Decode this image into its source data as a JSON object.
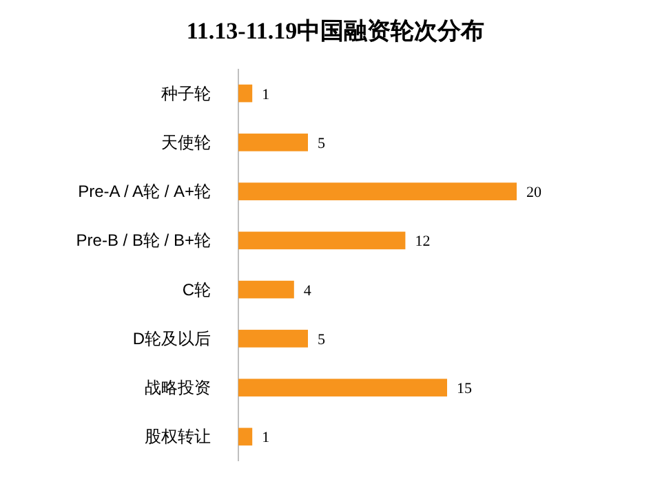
{
  "chart_data": {
    "type": "bar",
    "orientation": "horizontal",
    "title": "11.13-11.19中国融资轮次分布",
    "categories": [
      "种子轮",
      "天使轮",
      "Pre-A / A轮 / A+轮",
      "Pre-B / B轮 / B+轮",
      "C轮",
      "D轮及以后",
      "战略投资",
      "股权转让"
    ],
    "values": [
      1,
      5,
      20,
      12,
      4,
      5,
      15,
      1
    ],
    "color": "#f7941d",
    "data_labels": true
  }
}
